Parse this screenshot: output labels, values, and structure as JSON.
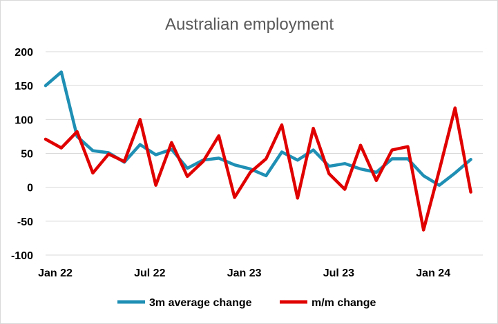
{
  "chart_data": {
    "type": "line",
    "title": "Australian employment",
    "xlabel": "",
    "ylabel": "",
    "ylim": [
      -100,
      200
    ],
    "yticks": [
      200,
      150,
      100,
      50,
      0,
      -50,
      -100
    ],
    "ytick_labels": [
      "200",
      "150",
      "100",
      "50",
      "0",
      "-50",
      "-100"
    ],
    "grid": true,
    "legend_position": "bottom",
    "x": [
      "Jan 22",
      "Feb 22",
      "Mar 22",
      "Apr 22",
      "May 22",
      "Jun 22",
      "Jul 22",
      "Aug 22",
      "Sep 22",
      "Oct 22",
      "Nov 22",
      "Dec 22",
      "Jan 23",
      "Feb 23",
      "Mar 23",
      "Apr 23",
      "May 23",
      "Jun 23",
      "Jul 23",
      "Aug 23",
      "Sep 23",
      "Oct 23",
      "Nov 23",
      "Dec 23",
      "Jan 24",
      "Feb 24",
      "Mar 24",
      "Apr 24"
    ],
    "xtick_labels": [
      "Jan 22",
      "Jul 22",
      "Jan 23",
      "Jul 23",
      "Jan 24"
    ],
    "xtick_index": [
      0,
      6,
      12,
      18,
      24
    ],
    "series": [
      {
        "name": "3m average change",
        "color": "#1f8fb4",
        "values": [
          150,
          170,
          75,
          54,
          51,
          37,
          63,
          48,
          56,
          28,
          40,
          43,
          33,
          27,
          17,
          52,
          40,
          55,
          31,
          35,
          27,
          22,
          42,
          42,
          17,
          3,
          21,
          41
        ]
      },
      {
        "name": "m/m change",
        "color": "#e00000",
        "values": [
          71,
          58,
          82,
          21,
          49,
          38,
          100,
          3,
          66,
          16,
          38,
          76,
          -15,
          22,
          42,
          92,
          -16,
          87,
          20,
          -3,
          62,
          10,
          55,
          60,
          -63,
          25,
          117,
          -7
        ]
      }
    ]
  }
}
